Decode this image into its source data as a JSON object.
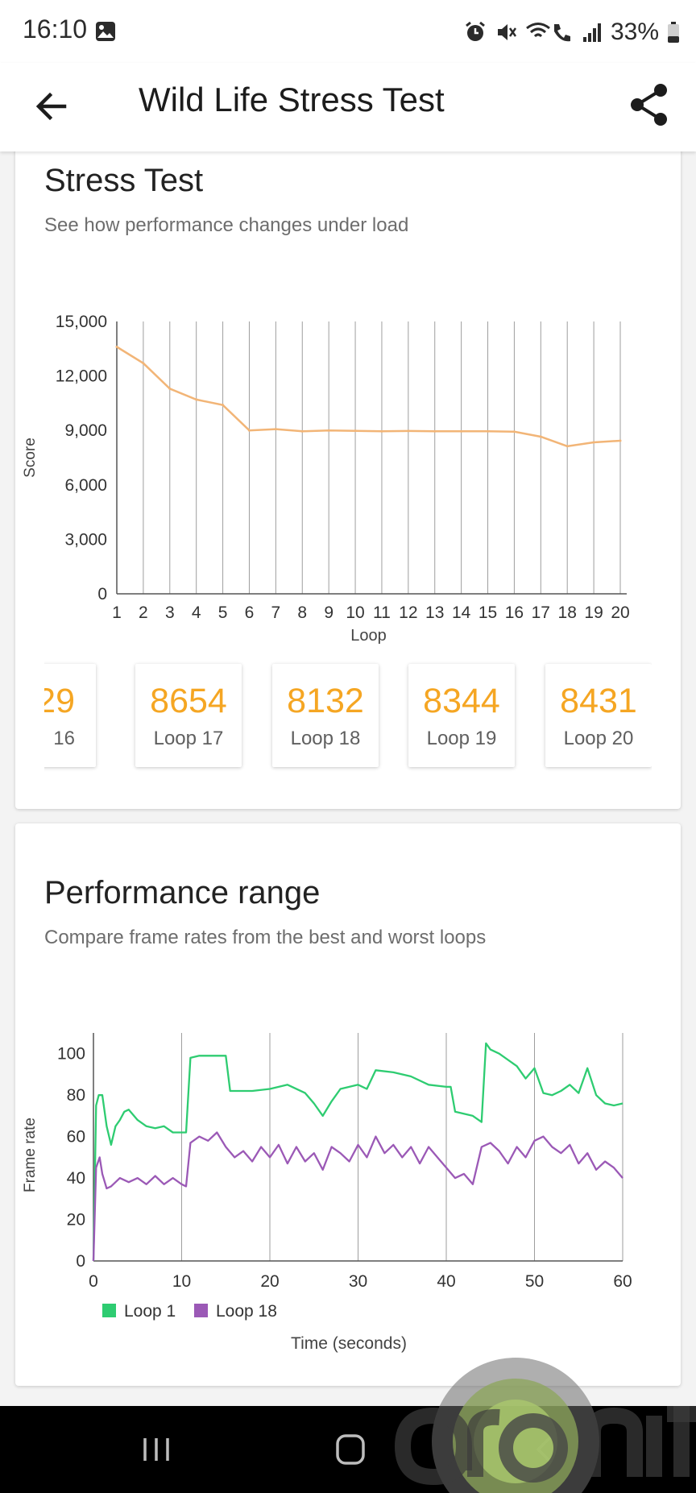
{
  "status_bar": {
    "time": "16:10",
    "battery": "33%",
    "icons": [
      "gallery-icon",
      "alarm-icon",
      "mute-icon",
      "wifi-call-icon",
      "signal-icon",
      "battery-icon"
    ]
  },
  "app_bar": {
    "title": "Wild Life Stress Test",
    "back_icon": "arrow-back-icon",
    "share_icon": "share-icon"
  },
  "stress_card": {
    "title": "Stress Test",
    "subtitle": "See how performance changes under load",
    "tiles": [
      {
        "value": "29",
        "label": "16"
      },
      {
        "value": "8654",
        "label": "Loop 17"
      },
      {
        "value": "8132",
        "label": "Loop 18"
      },
      {
        "value": "8344",
        "label": "Loop 19"
      },
      {
        "value": "8431",
        "label": "Loop 20"
      }
    ]
  },
  "range_card": {
    "title": "Performance range",
    "subtitle": "Compare frame rates from the best and worst loops"
  },
  "colors": {
    "score_line": "#f2b577",
    "accent_orange": "#f5a623",
    "loop1": "#2ecc71",
    "loop18": "#9b59b6",
    "grid": "#9e9e9e"
  },
  "chart_data": [
    {
      "type": "line",
      "xlabel": "Loop",
      "ylabel": "Score",
      "x": [
        1,
        2,
        3,
        4,
        5,
        6,
        7,
        8,
        9,
        10,
        11,
        12,
        13,
        14,
        15,
        16,
        17,
        18,
        19,
        20
      ],
      "y_ticks": [
        "0",
        "3,000",
        "6,000",
        "9,000",
        "12,000",
        "15,000"
      ],
      "ylim": [
        0,
        15000
      ],
      "grid": "vertical",
      "series": [
        {
          "values": [
            13600,
            12700,
            11300,
            10700,
            10400,
            9000,
            9070,
            8950,
            9000,
            8980,
            8950,
            8970,
            8950,
            8950,
            8950,
            8929,
            8654,
            8132,
            8344,
            8431
          ]
        }
      ]
    },
    {
      "type": "line",
      "xlabel": "Time (seconds)",
      "ylabel": "Frame rate",
      "x_ticks": [
        "0",
        "10",
        "20",
        "30",
        "40",
        "50",
        "60"
      ],
      "y_ticks": [
        "0",
        "20",
        "40",
        "60",
        "80",
        "100"
      ],
      "xlim": [
        0,
        60
      ],
      "ylim": [
        0,
        110
      ],
      "grid": "vertical",
      "legend": "bottom-left",
      "series": [
        {
          "name": "Loop 1",
          "x": [
            0,
            0.3,
            0.6,
            1,
            1.5,
            2,
            2.5,
            3,
            3.5,
            4,
            5,
            6,
            7,
            8,
            9,
            10,
            10.5,
            11,
            12,
            13,
            14,
            15,
            15.5,
            16,
            18,
            20,
            22,
            24,
            25,
            26,
            27,
            28,
            30,
            31,
            32,
            34,
            36,
            38,
            40,
            40.5,
            41,
            43,
            44,
            44.5,
            45,
            46,
            48,
            49,
            50,
            51,
            52,
            53,
            54,
            55,
            56,
            57,
            58,
            59,
            60
          ],
          "values": [
            0,
            75,
            80,
            80,
            65,
            56,
            65,
            68,
            72,
            73,
            68,
            65,
            64,
            65,
            62,
            62,
            62,
            98,
            99,
            99,
            99,
            99,
            82,
            82,
            82,
            83,
            85,
            81,
            76,
            70,
            77,
            83,
            85,
            83,
            92,
            91,
            89,
            85,
            84,
            84,
            72,
            70,
            67,
            105,
            102,
            100,
            94,
            88,
            93,
            81,
            80,
            82,
            85,
            81,
            93,
            80,
            76,
            75,
            76
          ]
        },
        {
          "name": "Loop 18",
          "x": [
            0,
            0.3,
            0.7,
            1,
            1.5,
            2,
            3,
            4,
            5,
            6,
            7,
            8,
            9,
            10,
            10.5,
            11,
            12,
            13,
            14,
            15,
            16,
            17,
            18,
            19,
            20,
            21,
            22,
            23,
            24,
            25,
            26,
            27,
            28,
            29,
            30,
            31,
            32,
            33,
            34,
            35,
            36,
            37,
            38,
            39,
            40,
            41,
            42,
            43,
            44,
            45,
            46,
            47,
            48,
            49,
            50,
            51,
            52,
            53,
            54,
            55,
            56,
            57,
            58,
            59,
            60
          ],
          "values": [
            0,
            45,
            50,
            42,
            35,
            36,
            40,
            38,
            40,
            37,
            41,
            37,
            40,
            37,
            36,
            57,
            60,
            58,
            62,
            55,
            50,
            53,
            48,
            55,
            50,
            56,
            47,
            55,
            48,
            52,
            44,
            55,
            52,
            48,
            56,
            50,
            60,
            52,
            56,
            50,
            55,
            47,
            55,
            50,
            45,
            40,
            42,
            37,
            55,
            57,
            53,
            47,
            55,
            50,
            58,
            60,
            55,
            52,
            56,
            47,
            52,
            44,
            48,
            45,
            40
          ]
        }
      ]
    }
  ]
}
